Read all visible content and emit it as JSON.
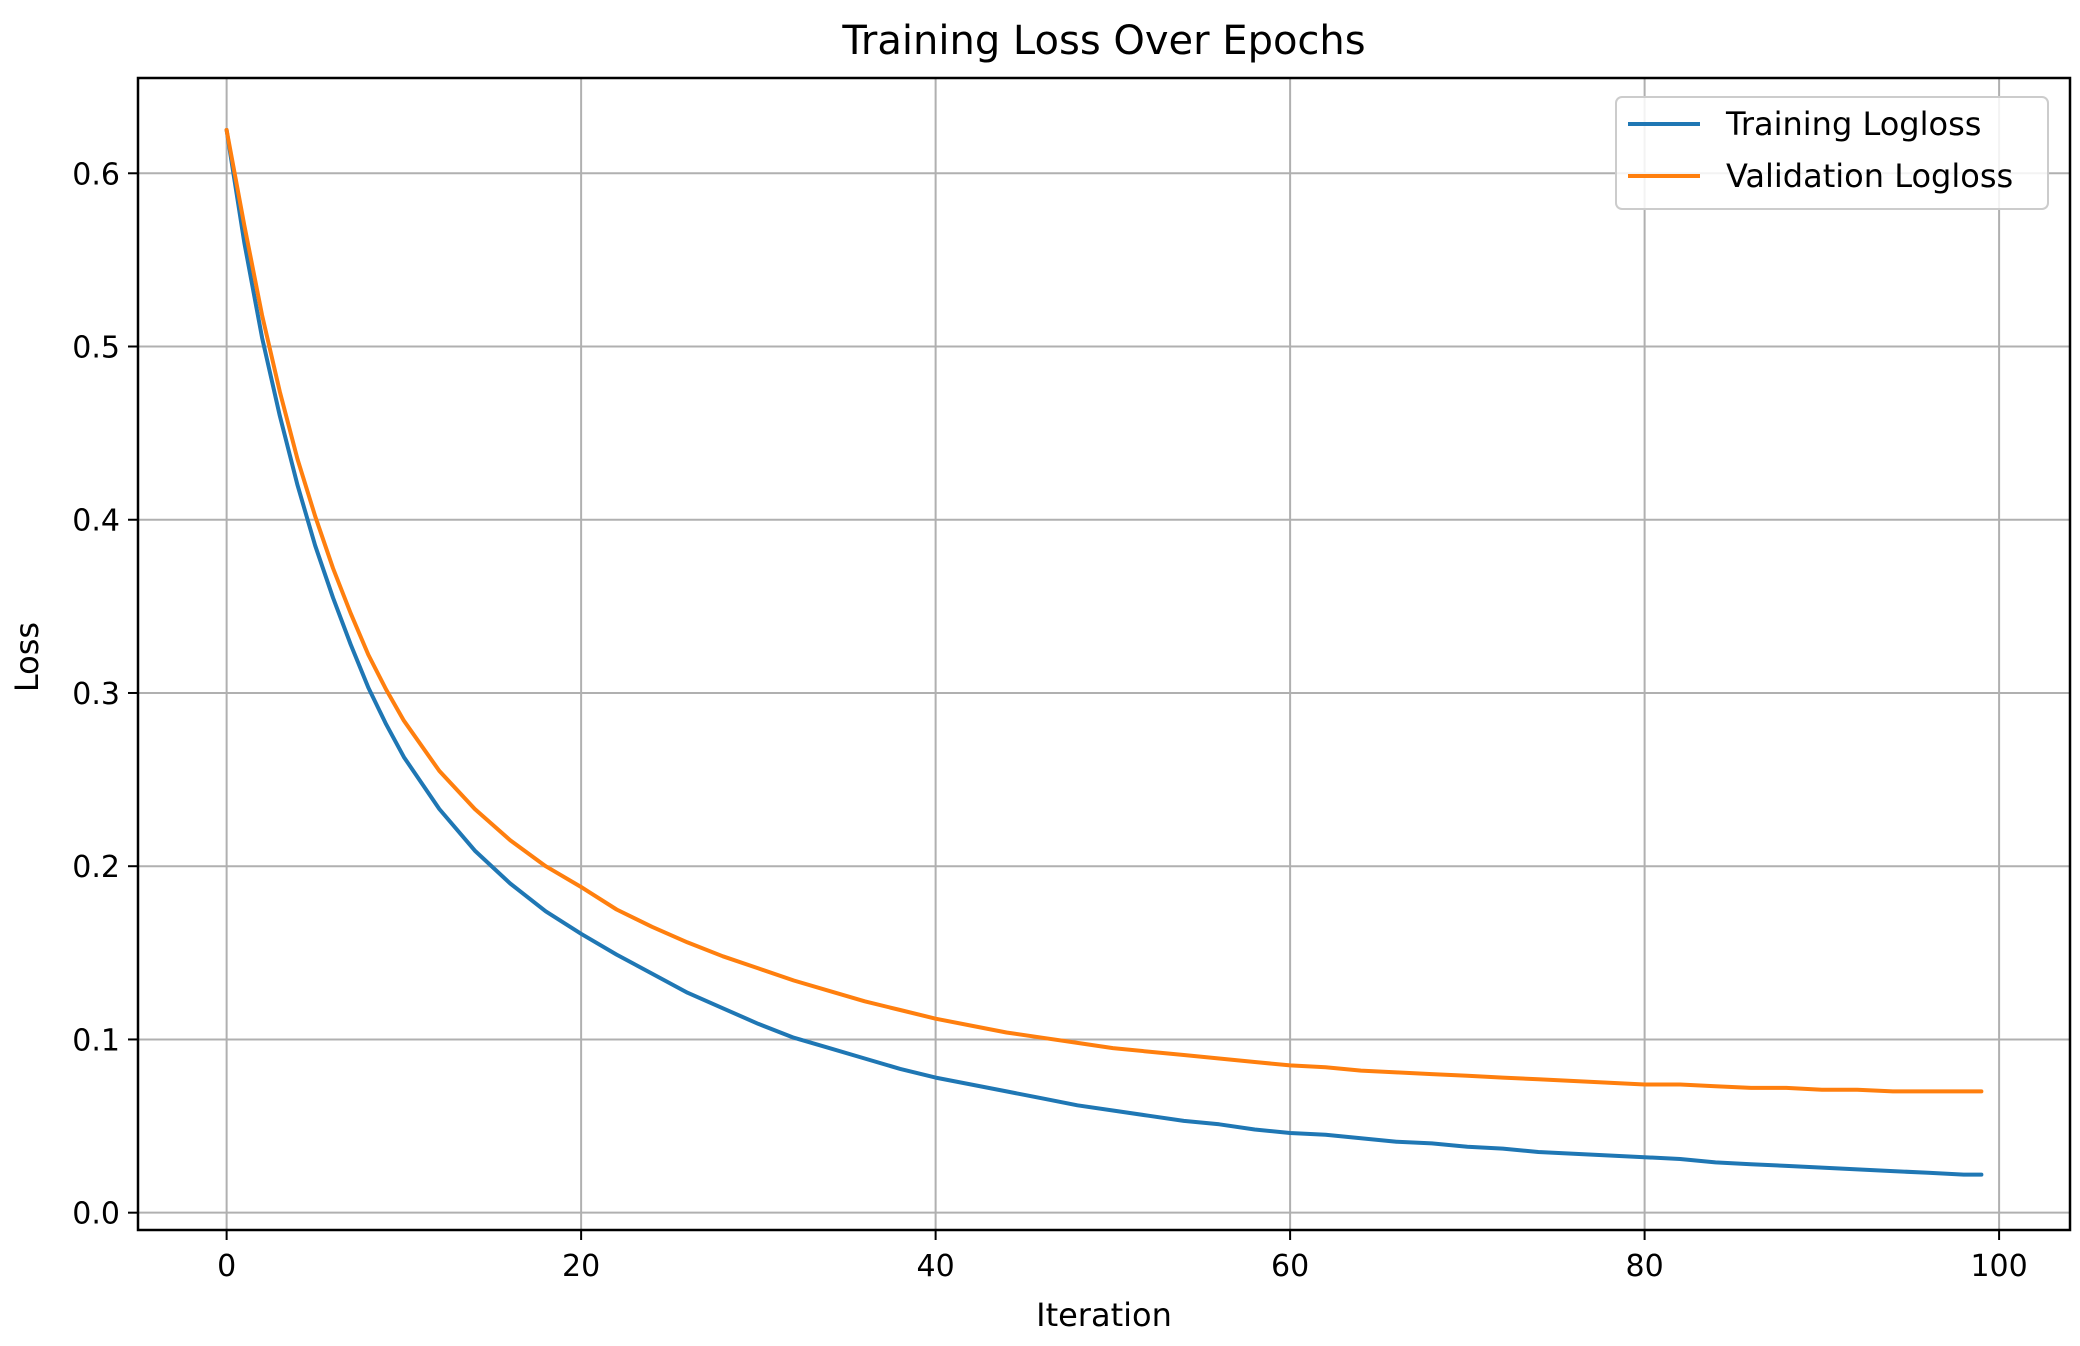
{
  "chart_data": {
    "type": "line",
    "title": "Training Loss Over Epochs",
    "xlabel": "Iteration",
    "ylabel": "Loss",
    "xlim": [
      -5,
      104
    ],
    "ylim": [
      -0.01,
      0.655
    ],
    "xticks": [
      0,
      20,
      40,
      60,
      80,
      100
    ],
    "xtick_labels": [
      "0",
      "20",
      "40",
      "60",
      "80",
      "100"
    ],
    "yticks": [
      0.0,
      0.1,
      0.2,
      0.3,
      0.4,
      0.5,
      0.6
    ],
    "ytick_labels": [
      "0.0",
      "0.1",
      "0.2",
      "0.3",
      "0.4",
      "0.5",
      "0.6"
    ],
    "grid": true,
    "legend_position": "top-right",
    "x": [
      0,
      1,
      2,
      3,
      4,
      5,
      6,
      7,
      8,
      9,
      10,
      12,
      14,
      16,
      18,
      20,
      22,
      24,
      26,
      28,
      30,
      32,
      34,
      36,
      38,
      40,
      42,
      44,
      46,
      48,
      50,
      52,
      54,
      56,
      58,
      60,
      62,
      64,
      66,
      68,
      70,
      72,
      74,
      76,
      78,
      80,
      82,
      84,
      86,
      88,
      90,
      92,
      94,
      96,
      98,
      99
    ],
    "series": [
      {
        "name": "Training Logloss",
        "color": "#1f77b4",
        "values": [
          0.625,
          0.56,
          0.505,
          0.46,
          0.42,
          0.385,
          0.355,
          0.328,
          0.303,
          0.282,
          0.263,
          0.233,
          0.209,
          0.19,
          0.174,
          0.161,
          0.149,
          0.138,
          0.127,
          0.118,
          0.109,
          0.101,
          0.095,
          0.089,
          0.083,
          0.078,
          0.074,
          0.07,
          0.066,
          0.062,
          0.059,
          0.056,
          0.053,
          0.051,
          0.048,
          0.046,
          0.045,
          0.043,
          0.041,
          0.04,
          0.038,
          0.037,
          0.035,
          0.034,
          0.033,
          0.032,
          0.031,
          0.029,
          0.028,
          0.027,
          0.026,
          0.025,
          0.024,
          0.023,
          0.022,
          0.022
        ]
      },
      {
        "name": "Validation Logloss",
        "color": "#ff7f0e",
        "values": [
          0.625,
          0.57,
          0.518,
          0.474,
          0.435,
          0.402,
          0.372,
          0.346,
          0.322,
          0.302,
          0.284,
          0.255,
          0.233,
          0.215,
          0.2,
          0.188,
          0.175,
          0.165,
          0.156,
          0.148,
          0.141,
          0.134,
          0.128,
          0.122,
          0.117,
          0.112,
          0.108,
          0.104,
          0.101,
          0.098,
          0.095,
          0.093,
          0.091,
          0.089,
          0.087,
          0.085,
          0.084,
          0.082,
          0.081,
          0.08,
          0.079,
          0.078,
          0.077,
          0.076,
          0.075,
          0.074,
          0.074,
          0.073,
          0.072,
          0.072,
          0.071,
          0.071,
          0.07,
          0.07,
          0.07,
          0.07
        ]
      }
    ]
  }
}
